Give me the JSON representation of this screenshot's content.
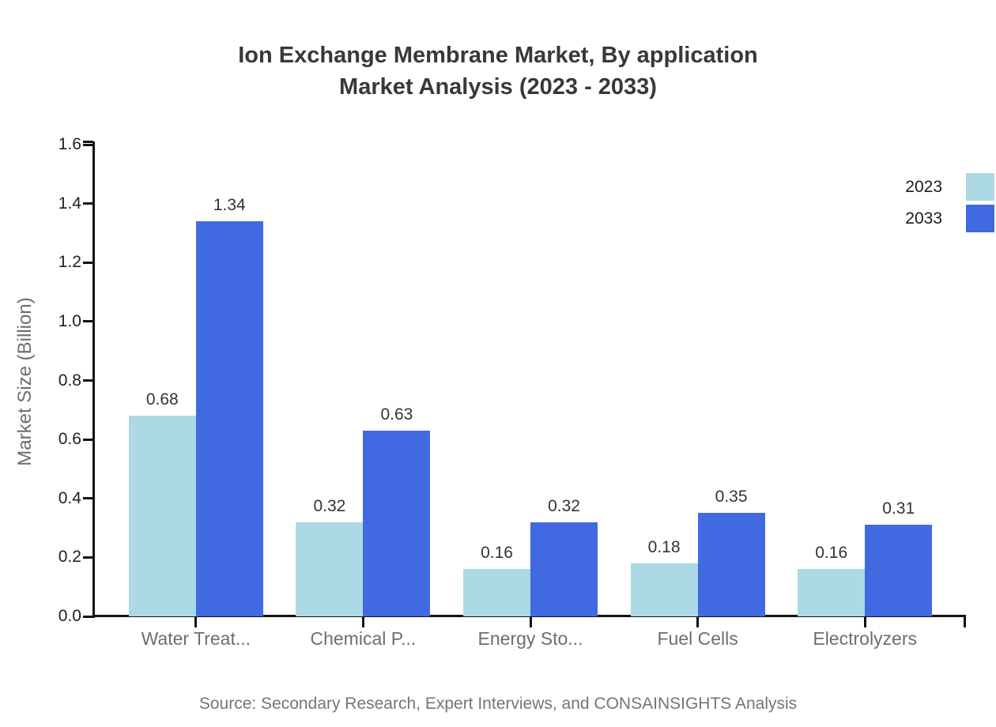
{
  "title": {
    "line1": "Ion Exchange Membrane Market, By application",
    "line2": "Market Analysis (2023 - 2033)"
  },
  "source": "Source: Secondary Research, Expert Interviews, and CONSAINSIGHTS Analysis",
  "chart_data": {
    "type": "bar",
    "categories": [
      "Water Treat...",
      "Chemical P...",
      "Energy Sto...",
      "Fuel Cells",
      "Electrolyzers"
    ],
    "series": [
      {
        "name": "2023",
        "color": "#ADD8E6",
        "values": [
          0.68,
          0.32,
          0.16,
          0.18,
          0.16
        ]
      },
      {
        "name": "2033",
        "color": "#4169E1",
        "values": [
          1.34,
          0.63,
          0.32,
          0.35,
          0.31
        ]
      }
    ],
    "title": "Ion Exchange Membrane Market, By application Market Analysis (2023 - 2033)",
    "xlabel": "",
    "ylabel": "Market Size (Billion)",
    "ylim": [
      0,
      1.6
    ],
    "yticks": [
      "0.0",
      "0.2",
      "0.4",
      "0.6",
      "0.8",
      "1.0",
      "1.2",
      "1.4",
      "1.6"
    ],
    "grid": false,
    "legend_position": "top-right",
    "value_labels": true,
    "axis_color": "#111111",
    "text_colors": {
      "title": "#383838",
      "tick_labels": "#212121",
      "category_labels": "#6e6e6e",
      "value_labels": "#333333",
      "source": "#757575"
    }
  }
}
